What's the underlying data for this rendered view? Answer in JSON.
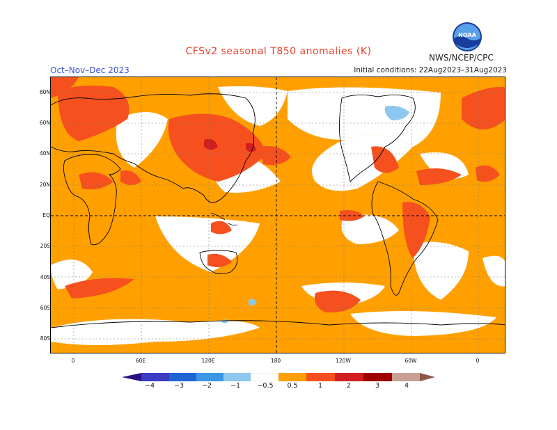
{
  "title": "CFSv2 seasonal T850 anomalies (K)",
  "period": "Oct–Nov–Dec 2023",
  "agency": "NWS/NCEP/CPC",
  "initial_conditions": "Initial conditions: 22Aug2023–31Aug2023",
  "logo": {
    "text": "NOAA",
    "icon": "noaa-logo"
  },
  "lat_labels": [
    "80N",
    "60N",
    "40N",
    "20N",
    "EQ",
    "20S",
    "40S",
    "60S",
    "80S"
  ],
  "lon_labels": [
    "0",
    "60E",
    "120E",
    "180",
    "120W",
    "60W",
    "0"
  ],
  "colorbar": {
    "ticks": [
      "−4",
      "−3",
      "−2",
      "−1",
      "−0.5",
      "0.5",
      "1",
      "2",
      "3",
      "4"
    ],
    "colors": {
      "below_-4": "#2a1080",
      "-4_-3": "#3c3cc4",
      "-3_-2": "#1e64d2",
      "-2_-1": "#3c96e6",
      "-1_-0.5": "#8cc8f0",
      "-0.5_0.5": "#ffffff",
      "0.5_1": "#ffa000",
      "1_2": "#f5501e",
      "2_3": "#d21e1e",
      "3_4": "#a00000",
      "4_5": "#c8a096",
      "above_5": "#8c5a46"
    }
  }
}
